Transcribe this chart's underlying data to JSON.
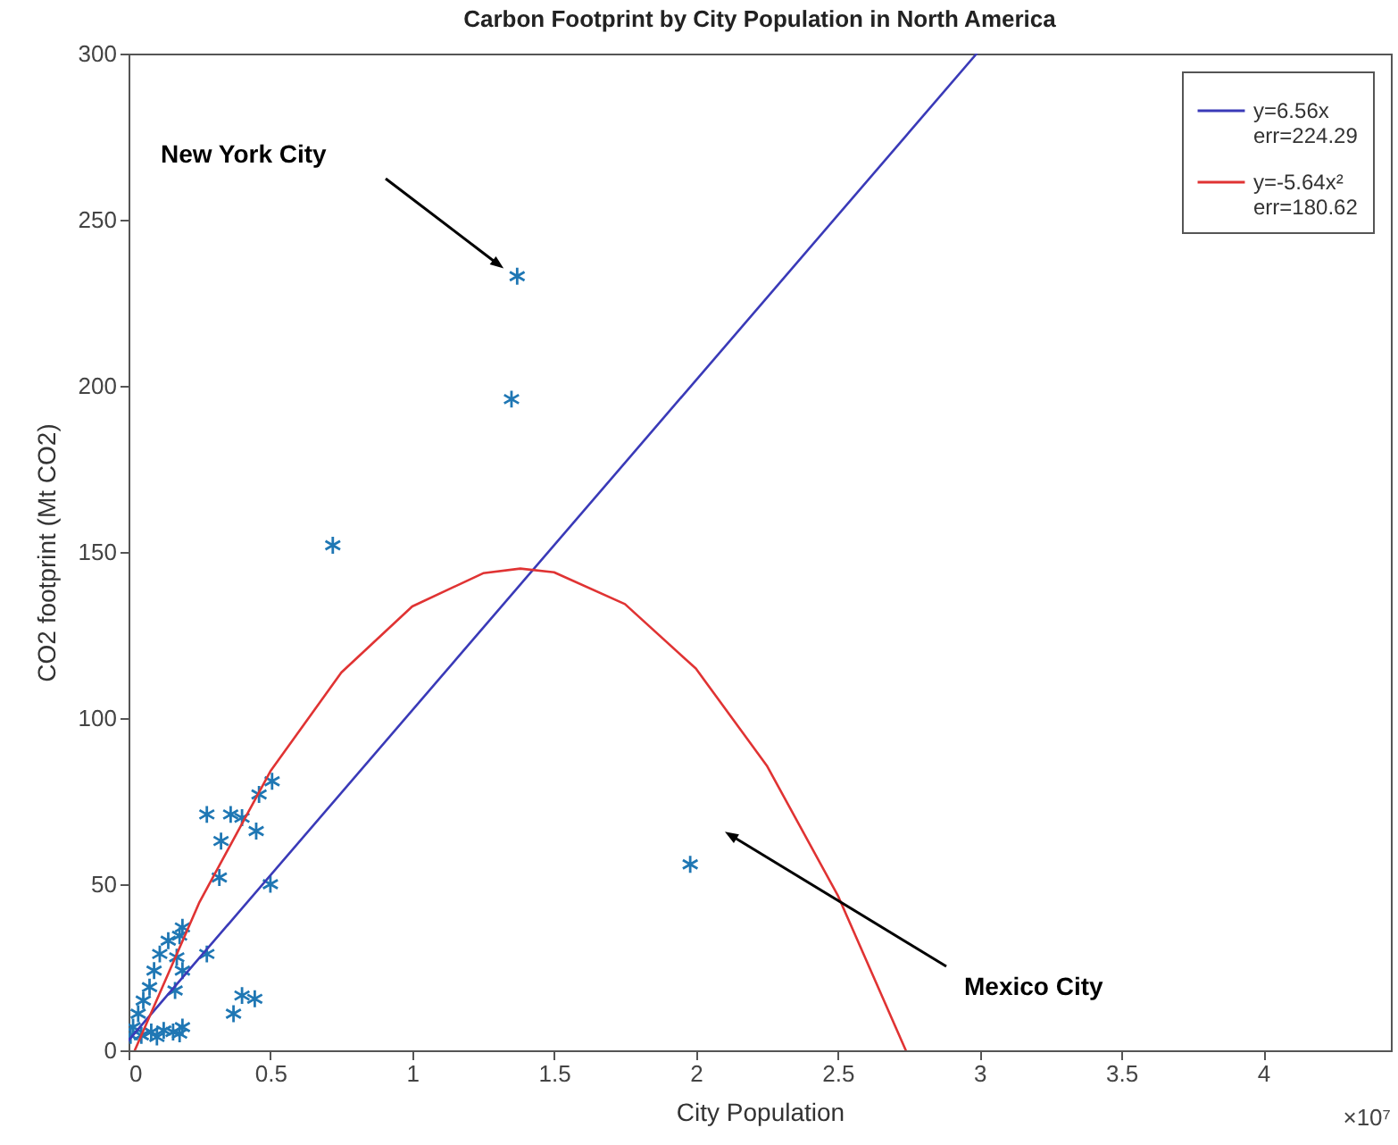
{
  "chart_data": {
    "type": "scatter",
    "title": "Carbon Footprint by City Population in North America",
    "xlabel": "City Population",
    "ylabel": "CO2 footprint (Mt CO2)",
    "xlim": [
      0,
      4.45
    ],
    "xticks": [
      0,
      0.5,
      1,
      1.5,
      2,
      2.5,
      3,
      3.5,
      4
    ],
    "ylim": [
      0,
      300
    ],
    "yticks": [
      0,
      50,
      100,
      150,
      200,
      250,
      300
    ],
    "grid": false,
    "legend": "top right",
    "series": [
      {
        "marker": "cross",
        "color": "#1f77b4",
        "x": [
          1.37,
          1.35,
          0.72,
          1.98,
          0.276,
          0.36,
          0.4,
          0.326,
          0.45,
          0.46,
          0.506,
          0.32,
          0.5,
          0.276,
          0.37,
          0.4,
          0.445,
          0.19,
          0.18,
          0.14,
          0.11,
          0.09,
          0.074,
          0.052,
          0.034,
          0.016,
          0.007,
          0.164,
          0.19,
          0.17,
          0.08,
          0.124,
          0.157,
          0.19,
          0.1,
          0.045,
          0.18
        ],
        "values": [
          233,
          196,
          152,
          56,
          71,
          71,
          70,
          63,
          66,
          77,
          81,
          52,
          50,
          29,
          11,
          16.5,
          15.5,
          37,
          34.5,
          33,
          29,
          24,
          19,
          15,
          11,
          7,
          4.5,
          18,
          24,
          28,
          5.5,
          6,
          5.5,
          7,
          4,
          4.5,
          5
        ]
      },
      {
        "type": "line",
        "name": "y=6.56x err=224.29",
        "color": "#3a3ab8",
        "x": [
          0,
          2.99
        ],
        "values": [
          3,
          300
        ]
      },
      {
        "type": "line",
        "name": "y=-5.64x² err=180.62",
        "color": "#e03333",
        "x": [
          0.022,
          0.25,
          0.5,
          0.75,
          1.0,
          1.25,
          1.381,
          1.5,
          1.75,
          2.0,
          2.25,
          2.5,
          2.74
        ],
        "values": [
          0,
          44.6,
          84,
          113.7,
          133.6,
          143.6,
          145,
          143.9,
          134.3,
          114.9,
          85.7,
          46.7,
          0
        ]
      }
    ],
    "annotations": [
      "New York City",
      "Mexico City",
      "×10⁷"
    ]
  }
}
